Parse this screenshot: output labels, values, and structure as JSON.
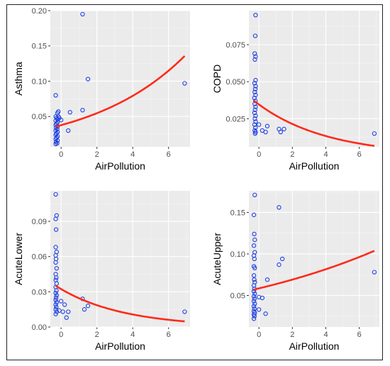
{
  "colors": {
    "points": "#1f3fe0",
    "curve": "#ff2a1a",
    "panel": "#ebebeb"
  },
  "chart_data": [
    {
      "type": "scatter",
      "xlabel": "AirPollution",
      "ylabel": "Asthma",
      "xlim": [
        -0.6,
        7.2
      ],
      "ylim": [
        0.007,
        0.2
      ],
      "xticks": [
        "0",
        "2",
        "4",
        "6"
      ],
      "xtick_values": [
        0,
        2,
        4,
        6
      ],
      "yticks": [
        "0.05",
        "0.10",
        "0.15",
        "0.20"
      ],
      "ytick_values": [
        0.05,
        0.1,
        0.15,
        0.2
      ],
      "grid": true,
      "points": [
        [
          -0.3,
          0.08
        ],
        [
          -0.2,
          0.055
        ],
        [
          -0.15,
          0.057
        ],
        [
          -0.3,
          0.05
        ],
        [
          -0.25,
          0.048
        ],
        [
          -0.2,
          0.046
        ],
        [
          -0.3,
          0.044
        ],
        [
          -0.2,
          0.042
        ],
        [
          -0.25,
          0.04
        ],
        [
          -0.3,
          0.038
        ],
        [
          -0.2,
          0.036
        ],
        [
          -0.28,
          0.034
        ],
        [
          -0.22,
          0.032
        ],
        [
          -0.3,
          0.03
        ],
        [
          -0.2,
          0.028
        ],
        [
          -0.26,
          0.026
        ],
        [
          -0.3,
          0.024
        ],
        [
          -0.2,
          0.022
        ],
        [
          -0.25,
          0.02
        ],
        [
          -0.3,
          0.018
        ],
        [
          -0.2,
          0.016
        ],
        [
          -0.28,
          0.014
        ],
        [
          -0.22,
          0.012
        ],
        [
          -0.3,
          0.011
        ],
        [
          -0.15,
          0.05
        ],
        [
          -0.1,
          0.048
        ],
        [
          0.0,
          0.045
        ],
        [
          0.4,
          0.03
        ],
        [
          0.5,
          0.056
        ],
        [
          1.2,
          0.195
        ],
        [
          1.2,
          0.059
        ],
        [
          1.5,
          0.103
        ],
        [
          6.9,
          0.097
        ]
      ],
      "curve": {
        "x0": -0.3,
        "x1": 6.9,
        "a": 0.0377,
        "b": 0.1857
      }
    },
    {
      "type": "scatter",
      "xlabel": "AirPollution",
      "ylabel": "COPD",
      "xlim": [
        -0.6,
        7.2
      ],
      "ylim": [
        0.006,
        0.098
      ],
      "xticks": [
        "0",
        "2",
        "4",
        "6"
      ],
      "xtick_values": [
        0,
        2,
        4,
        6
      ],
      "yticks": [
        "0.025",
        "0.050",
        "0.075"
      ],
      "ytick_values": [
        0.025,
        0.05,
        0.075
      ],
      "grid": true,
      "points": [
        [
          -0.2,
          0.095
        ],
        [
          -0.22,
          0.081
        ],
        [
          -0.25,
          0.069
        ],
        [
          -0.2,
          0.067
        ],
        [
          -0.24,
          0.065
        ],
        [
          -0.2,
          0.051
        ],
        [
          -0.26,
          0.049
        ],
        [
          -0.2,
          0.047
        ],
        [
          -0.22,
          0.045
        ],
        [
          -0.25,
          0.043
        ],
        [
          -0.2,
          0.041
        ],
        [
          -0.27,
          0.039
        ],
        [
          -0.21,
          0.037
        ],
        [
          -0.25,
          0.035
        ],
        [
          -0.2,
          0.033
        ],
        [
          -0.23,
          0.031
        ],
        [
          -0.26,
          0.029
        ],
        [
          -0.2,
          0.027
        ],
        [
          -0.24,
          0.025
        ],
        [
          -0.2,
          0.023
        ],
        [
          -0.26,
          0.021
        ],
        [
          -0.21,
          0.019
        ],
        [
          -0.25,
          0.017
        ],
        [
          -0.2,
          0.016
        ],
        [
          -0.23,
          0.015
        ],
        [
          0.0,
          0.021
        ],
        [
          0.2,
          0.017
        ],
        [
          0.4,
          0.016
        ],
        [
          0.5,
          0.02
        ],
        [
          1.2,
          0.018
        ],
        [
          1.3,
          0.016
        ],
        [
          1.5,
          0.018
        ],
        [
          6.9,
          0.015
        ]
      ],
      "curve": {
        "x0": -0.3,
        "x1": 6.9,
        "a": 0.0346,
        "b": -0.2393
      }
    },
    {
      "type": "scatter",
      "xlabel": "AirPollution",
      "ylabel": "AcuteLower",
      "xlim": [
        -0.6,
        7.2
      ],
      "ylim": [
        0.0,
        0.116
      ],
      "xticks": [
        "0",
        "2",
        "4",
        "6"
      ],
      "xtick_values": [
        0,
        2,
        4,
        6
      ],
      "yticks": [
        "0.00",
        "0.03",
        "0.06",
        "0.09"
      ],
      "ytick_values": [
        0.0,
        0.03,
        0.06,
        0.09
      ],
      "grid": true,
      "points": [
        [
          -0.3,
          0.113
        ],
        [
          -0.25,
          0.095
        ],
        [
          -0.3,
          0.092
        ],
        [
          -0.28,
          0.083
        ],
        [
          -0.3,
          0.068
        ],
        [
          -0.25,
          0.064
        ],
        [
          -0.3,
          0.061
        ],
        [
          -0.28,
          0.058
        ],
        [
          -0.3,
          0.055
        ],
        [
          -0.25,
          0.05
        ],
        [
          -0.3,
          0.045
        ],
        [
          -0.27,
          0.042
        ],
        [
          -0.3,
          0.04
        ],
        [
          -0.25,
          0.037
        ],
        [
          -0.3,
          0.034
        ],
        [
          -0.26,
          0.031
        ],
        [
          -0.3,
          0.029
        ],
        [
          -0.25,
          0.027
        ],
        [
          -0.28,
          0.025
        ],
        [
          -0.3,
          0.023
        ],
        [
          -0.25,
          0.021
        ],
        [
          -0.3,
          0.019
        ],
        [
          -0.27,
          0.017
        ],
        [
          -0.3,
          0.015
        ],
        [
          -0.25,
          0.013
        ],
        [
          -0.3,
          0.011
        ],
        [
          -0.1,
          0.014
        ],
        [
          0.1,
          0.013
        ],
        [
          0.0,
          0.022
        ],
        [
          0.2,
          0.019
        ],
        [
          0.4,
          0.013
        ],
        [
          0.3,
          0.008
        ],
        [
          1.2,
          0.024
        ],
        [
          1.3,
          0.015
        ],
        [
          1.5,
          0.018
        ],
        [
          6.9,
          0.013
        ]
      ],
      "curve": {
        "x0": -0.3,
        "x1": 6.9,
        "a": 0.0323,
        "b": -0.2767
      }
    },
    {
      "type": "scatter",
      "xlabel": "AirPollution",
      "ylabel": "AcuteUpper",
      "xlim": [
        -0.6,
        7.2
      ],
      "ylim": [
        0.012,
        0.176
      ],
      "xticks": [
        "0",
        "2",
        "4",
        "6"
      ],
      "xtick_values": [
        0,
        2,
        4,
        6
      ],
      "yticks": [
        "0.05",
        "0.10",
        "0.15"
      ],
      "ytick_values": [
        0.05,
        0.1,
        0.15
      ],
      "grid": true,
      "points": [
        [
          -0.25,
          0.171
        ],
        [
          -0.3,
          0.147
        ],
        [
          -0.28,
          0.124
        ],
        [
          -0.25,
          0.117
        ],
        [
          -0.3,
          0.11
        ],
        [
          -0.25,
          0.102
        ],
        [
          -0.3,
          0.098
        ],
        [
          -0.27,
          0.094
        ],
        [
          -0.3,
          0.085
        ],
        [
          -0.25,
          0.083
        ],
        [
          -0.3,
          0.074
        ],
        [
          -0.28,
          0.069
        ],
        [
          -0.25,
          0.066
        ],
        [
          -0.3,
          0.062
        ],
        [
          -0.27,
          0.058
        ],
        [
          -0.3,
          0.055
        ],
        [
          -0.25,
          0.052
        ],
        [
          -0.3,
          0.049
        ],
        [
          -0.27,
          0.046
        ],
        [
          -0.3,
          0.043
        ],
        [
          -0.25,
          0.04
        ],
        [
          -0.3,
          0.037
        ],
        [
          -0.27,
          0.034
        ],
        [
          -0.3,
          0.031
        ],
        [
          -0.25,
          0.029
        ],
        [
          -0.3,
          0.027
        ],
        [
          -0.27,
          0.025
        ],
        [
          -0.3,
          0.022
        ],
        [
          0.0,
          0.048
        ],
        [
          0.2,
          0.047
        ],
        [
          0.4,
          0.028
        ],
        [
          0.5,
          0.069
        ],
        [
          0.0,
          0.033
        ],
        [
          1.2,
          0.156
        ],
        [
          1.2,
          0.087
        ],
        [
          1.4,
          0.094
        ],
        [
          6.9,
          0.078
        ]
      ],
      "curve": {
        "x0": -0.3,
        "x1": 6.9,
        "a": 0.0585,
        "b": 0.083
      }
    }
  ]
}
